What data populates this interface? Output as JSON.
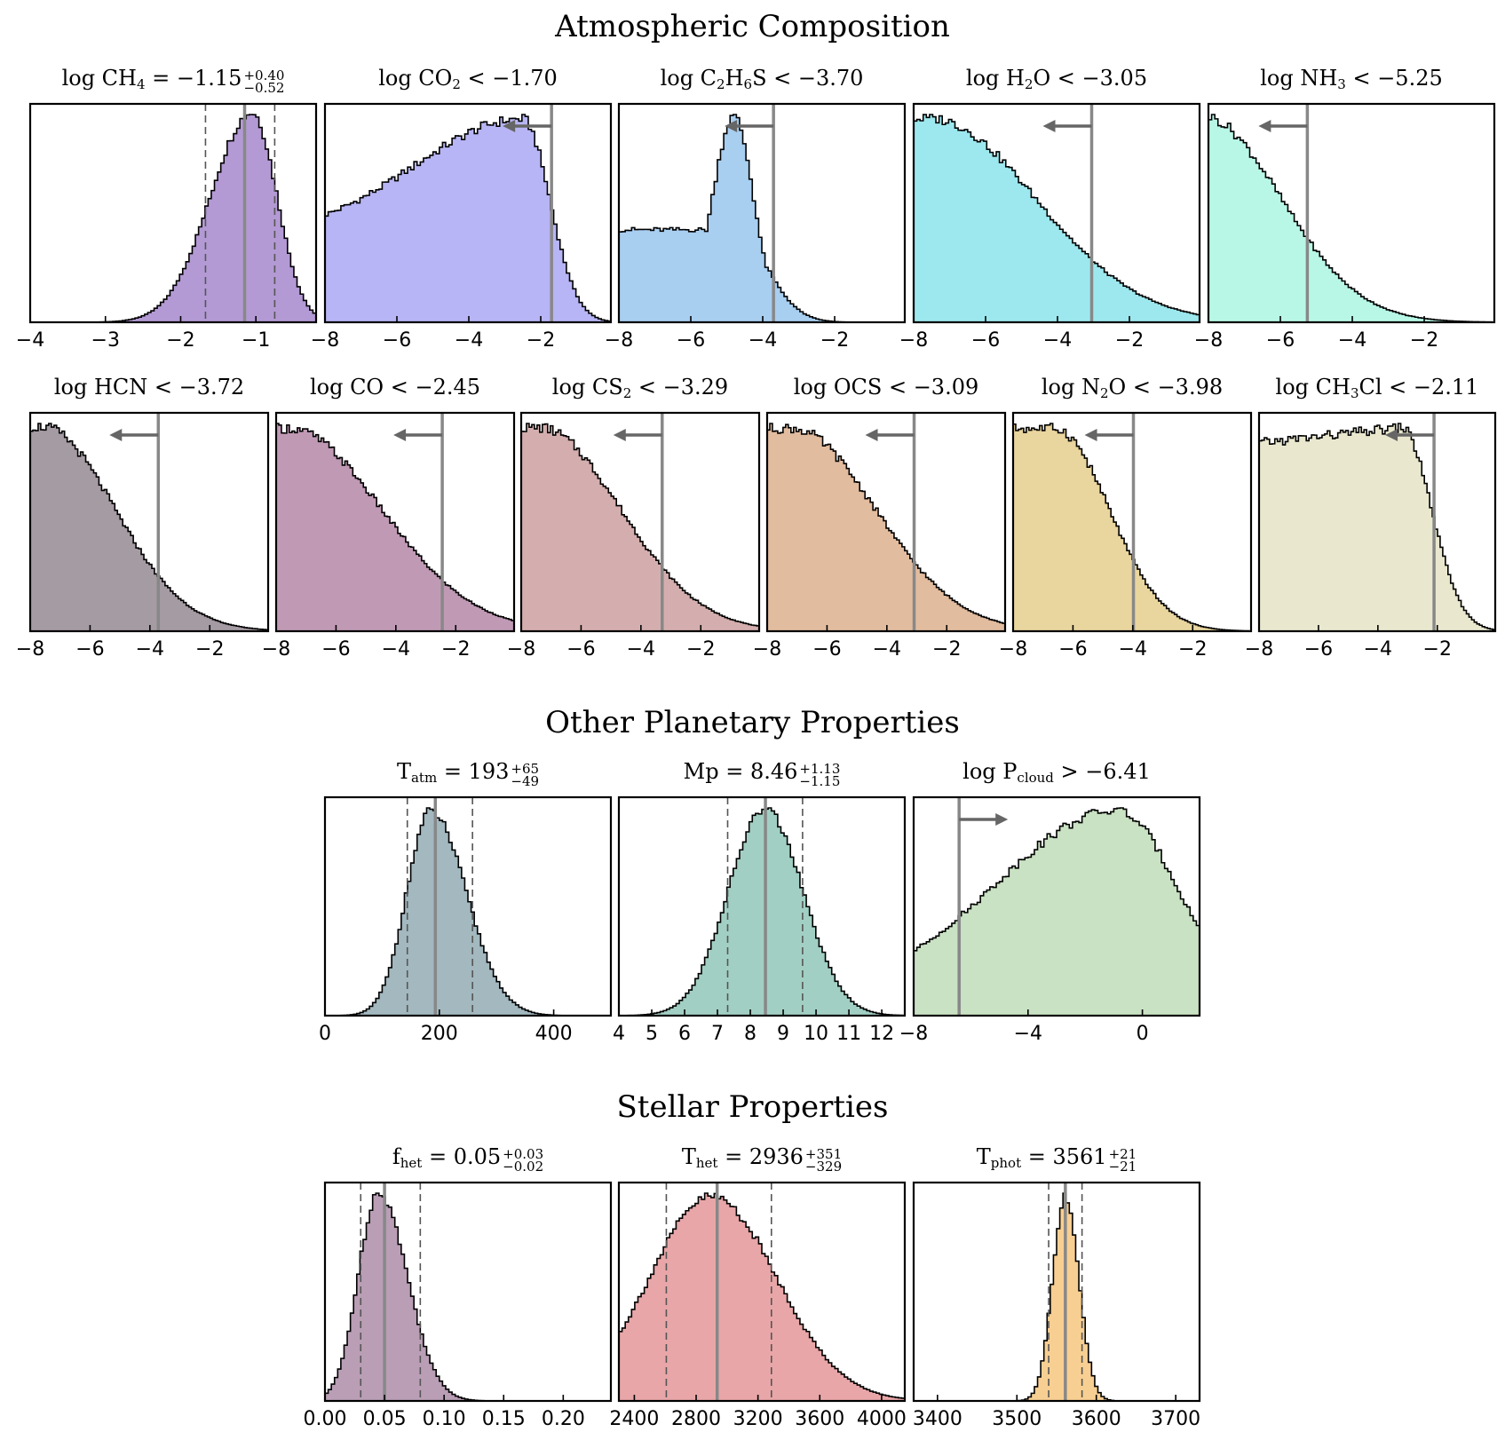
{
  "sections": {
    "atmospheric": "Atmospheric Composition",
    "planetary": "Other Planetary Properties",
    "stellar": "Stellar Properties"
  },
  "colors": {
    "median_line": "#888888",
    "arrow": "#666666"
  },
  "chart_data": [
    {
      "type": "histogram",
      "id": "ch4",
      "title": {
        "pre": "log CH",
        "sub": "4",
        "post": " = −1.15",
        "sup": "+0.40",
        "sub2": "−0.52"
      },
      "kind": "measured",
      "xlim": [
        -4,
        -0.2
      ],
      "ticks": [
        -4,
        -3,
        -2,
        -1
      ],
      "median": -1.15,
      "lo": -1.67,
      "hi": -0.75,
      "color": "#b39ad4",
      "shape": {
        "kind": "skewnorm",
        "mu": -1.05,
        "sl": 0.55,
        "sr": 0.33,
        "tail": 0
      }
    },
    {
      "type": "histogram",
      "id": "co2",
      "title": {
        "pre": "log CO",
        "sub": "2",
        "post": " < −1.70"
      },
      "kind": "upper",
      "xlim": [
        -8,
        -0.05
      ],
      "ticks": [
        -8,
        -6,
        -4,
        -2
      ],
      "limit": -1.7,
      "color": "#b7b5f5",
      "shape": {
        "kind": "ramp",
        "start": 0.42,
        "peak": -2.5,
        "sl": 3.0,
        "sr": 0.75
      }
    },
    {
      "type": "histogram",
      "id": "c2h6s",
      "title": {
        "pre": "log C",
        "sub": "2",
        "post": "H",
        "sub2b": "6",
        "post2": "S < −3.70"
      },
      "kind": "upper",
      "xlim": [
        -8,
        -0.05
      ],
      "ticks": [
        -8,
        -6,
        -4,
        -2
      ],
      "limit": -3.7,
      "color": "#a8cef0",
      "shape": {
        "kind": "peakflat",
        "flat": 0.45,
        "peak": -4.8,
        "sl": 0.6,
        "sr": 0.55
      }
    },
    {
      "type": "histogram",
      "id": "h2o",
      "title": {
        "pre": "log H",
        "sub": "2",
        "post": "O < −3.05"
      },
      "kind": "upper",
      "xlim": [
        -8,
        -0.05
      ],
      "ticks": [
        -8,
        -6,
        -4,
        -2
      ],
      "limit": -3.05,
      "color": "#9de8ee",
      "shape": {
        "kind": "halfgauss",
        "plateau": -7.5,
        "s": 2.9
      }
    },
    {
      "type": "histogram",
      "id": "nh3",
      "title": {
        "pre": "log NH",
        "sub": "3",
        "post": " < −5.25"
      },
      "kind": "upper",
      "xlim": [
        -8,
        -0.05
      ],
      "ticks": [
        -8,
        -6,
        -4,
        -2
      ],
      "limit": -5.25,
      "color": "#b8f7e6",
      "shape": {
        "kind": "halfgauss",
        "plateau": -8.2,
        "s": 2.2
      }
    },
    {
      "type": "histogram",
      "id": "hcn",
      "title": {
        "pre": "log HCN < −3.72"
      },
      "kind": "upper",
      "xlim": [
        -8,
        -0.05
      ],
      "ticks": [
        -8,
        -6,
        -4,
        -2
      ],
      "limit": -3.72,
      "color": "#a59ba3",
      "shape": {
        "kind": "halfgauss",
        "plateau": -7.6,
        "s": 2.4
      }
    },
    {
      "type": "histogram",
      "id": "co",
      "title": {
        "pre": "log CO < −2.45"
      },
      "kind": "upper",
      "xlim": [
        -8,
        -0.05
      ],
      "ticks": [
        -8,
        -6,
        -4,
        -2
      ],
      "limit": -2.45,
      "color": "#c09ab5",
      "shape": {
        "kind": "halfgauss",
        "plateau": -7.6,
        "s": 3.1
      }
    },
    {
      "type": "histogram",
      "id": "cs2",
      "title": {
        "pre": "log CS",
        "sub": "2",
        "post": " < −3.29"
      },
      "kind": "upper",
      "xlim": [
        -8,
        -0.05
      ],
      "ticks": [
        -8,
        -6,
        -4,
        -2
      ],
      "limit": -3.29,
      "color": "#d4aeae",
      "shape": {
        "kind": "halfgauss",
        "plateau": -7.4,
        "s": 2.7
      }
    },
    {
      "type": "histogram",
      "id": "ocs",
      "title": {
        "pre": "log OCS < −3.09"
      },
      "kind": "upper",
      "xlim": [
        -8,
        -0.05
      ],
      "ticks": [
        -8,
        -6,
        -4,
        -2
      ],
      "limit": -3.09,
      "color": "#e2bc9f",
      "shape": {
        "kind": "halfgauss",
        "plateau": -7.2,
        "s": 2.8
      }
    },
    {
      "type": "histogram",
      "id": "n2o",
      "title": {
        "pre": "log N",
        "sub": "2",
        "post": "O < −3.98"
      },
      "kind": "upper",
      "xlim": [
        -8,
        -0.05
      ],
      "ticks": [
        -8,
        -6,
        -4,
        -2
      ],
      "limit": -3.98,
      "color": "#e9d59e",
      "shape": {
        "kind": "halfgauss",
        "plateau": -6.6,
        "s": 1.8
      }
    },
    {
      "type": "histogram",
      "id": "ch3cl",
      "title": {
        "pre": "log CH",
        "sub": "3",
        "post": "Cl < −2.11"
      },
      "kind": "upper",
      "xlim": [
        -8,
        -0.05
      ],
      "ticks": [
        -8,
        -6,
        -4,
        -2
      ],
      "limit": -2.11,
      "color": "#e9e8cf",
      "shape": {
        "kind": "halfgauss",
        "plateau": -3.2,
        "s": 1.0,
        "slope": 0.08
      }
    },
    {
      "type": "histogram",
      "id": "tatm",
      "title": {
        "pre": "T",
        "sub": "atm",
        "post": " = 193",
        "sup": "+65",
        "sub2": "−49"
      },
      "kind": "measured",
      "xlim": [
        0,
        500
      ],
      "ticks": [
        0,
        200,
        400
      ],
      "median": 193,
      "lo": 144,
      "hi": 258,
      "color": "#a3b8bf",
      "shape": {
        "kind": "skewnorm",
        "mu": 185,
        "sl": 42,
        "sr": 62,
        "tail": 0
      }
    },
    {
      "type": "histogram",
      "id": "mp",
      "title": {
        "pre": "Mp = 8.46",
        "sup": "+1.13",
        "sub2": "−1.15"
      },
      "kind": "measured",
      "xlim": [
        4,
        12.7
      ],
      "ticks": [
        4,
        5,
        6,
        7,
        8,
        9,
        10,
        11,
        12
      ],
      "median": 8.46,
      "lo": 7.31,
      "hi": 9.59,
      "color": "#a2cfc3",
      "shape": {
        "kind": "skewnorm",
        "mu": 8.45,
        "sl": 1.12,
        "sr": 1.15,
        "tail": 0
      }
    },
    {
      "type": "histogram",
      "id": "pcloud",
      "title": {
        "pre": "log P",
        "sub": "cloud",
        "post": " > −6.41"
      },
      "kind": "lower",
      "xlim": [
        -8,
        2
      ],
      "ticks": [
        -8,
        -4,
        0
      ],
      "limit": -6.41,
      "color": "#c9e2c3",
      "shape": {
        "kind": "ramp",
        "start": 0.1,
        "peak": -0.9,
        "sl": 4.2,
        "sr": 2.2
      }
    },
    {
      "type": "histogram",
      "id": "fhet",
      "title": {
        "pre": "f",
        "sub": "het",
        "post": " = 0.05",
        "sup": "+0.03",
        "sub2": "−0.02"
      },
      "kind": "measured",
      "xlim": [
        0,
        0.24
      ],
      "ticks": [
        0.0,
        0.05,
        0.1,
        0.15,
        0.2
      ],
      "median": 0.05,
      "lo": 0.03,
      "hi": 0.08,
      "color": "#b99eb5",
      "shape": {
        "kind": "skewnorm",
        "mu": 0.045,
        "sl": 0.017,
        "sr": 0.024,
        "tail": 0
      }
    },
    {
      "type": "histogram",
      "id": "thet",
      "title": {
        "pre": "T",
        "sub": "het",
        "post": " = 2936",
        "sup": "+351",
        "sub2": "−329"
      },
      "kind": "measured",
      "xlim": [
        2300,
        4150
      ],
      "ticks": [
        2400,
        2800,
        3200,
        3600,
        4000
      ],
      "median": 2936,
      "lo": 2607,
      "hi": 3287,
      "color": "#e8a6a8",
      "shape": {
        "kind": "skewnorm",
        "mu": 2900,
        "sl": 400,
        "sr": 420,
        "tail": 0
      }
    },
    {
      "type": "histogram",
      "id": "tphot",
      "title": {
        "pre": "T",
        "sub": "phot",
        "post": " = 3561",
        "sup": "+21",
        "sub2": "−21"
      },
      "kind": "measured",
      "xlim": [
        3370,
        3730
      ],
      "ticks": [
        3400,
        3500,
        3600,
        3700
      ],
      "median": 3561,
      "lo": 3540,
      "hi": 3582,
      "color": "#f8cf92",
      "shape": {
        "kind": "skewnorm",
        "mu": 3561,
        "sl": 16,
        "sr": 17,
        "tail": 0
      }
    }
  ]
}
